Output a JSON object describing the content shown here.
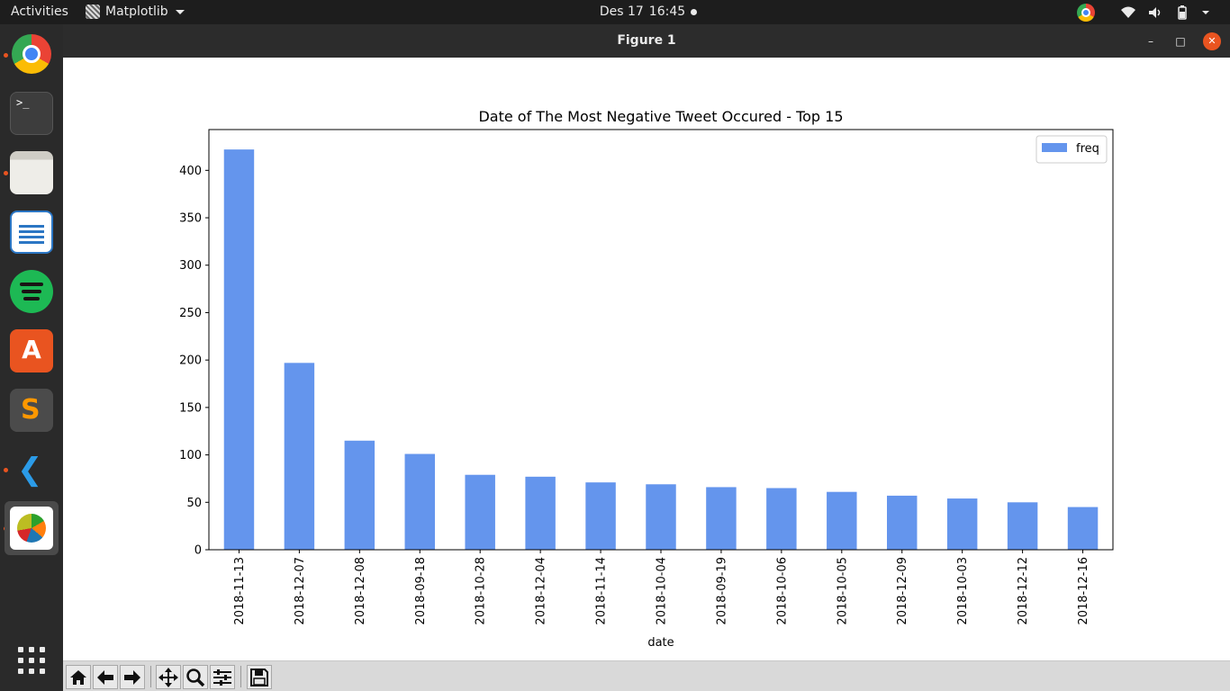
{
  "topbar": {
    "activities": "Activities",
    "app_name": "Matplotlib",
    "date": "Des 17",
    "time": "16:45"
  },
  "dock": {
    "apps": [
      "chrome",
      "terminal",
      "files",
      "libreoffice-writer",
      "spotify",
      "ubuntu-software",
      "sublime-text",
      "vscode",
      "matplotlib"
    ],
    "terminal_glyph": ">_"
  },
  "window": {
    "title": "Figure 1"
  },
  "toolbar": {
    "buttons": [
      "home-icon",
      "back-arrow-icon",
      "forward-arrow-icon",
      "pan-icon",
      "zoom-icon",
      "configure-subplots-icon",
      "save-icon"
    ]
  },
  "colors": {
    "bar": "#6495ed",
    "accent": "#e95420"
  },
  "chart_data": {
    "type": "bar",
    "title": "Date of The Most Negative Tweet Occured - Top 15",
    "xlabel": "date",
    "ylabel": "",
    "categories": [
      "2018-11-13",
      "2018-12-07",
      "2018-12-08",
      "2018-09-18",
      "2018-10-28",
      "2018-12-04",
      "2018-11-14",
      "2018-10-04",
      "2018-09-19",
      "2018-10-06",
      "2018-10-05",
      "2018-12-09",
      "2018-10-03",
      "2018-12-12",
      "2018-12-16"
    ],
    "series": [
      {
        "name": "freq",
        "values": [
          422,
          197,
          115,
          101,
          79,
          77,
          71,
          69,
          66,
          65,
          61,
          57,
          54,
          50,
          45
        ]
      }
    ],
    "ylim": [
      0,
      443
    ],
    "yticks": [
      "0",
      "50",
      "100",
      "150",
      "200",
      "250",
      "300",
      "350",
      "400"
    ],
    "legend": "top-right",
    "grid": false
  }
}
